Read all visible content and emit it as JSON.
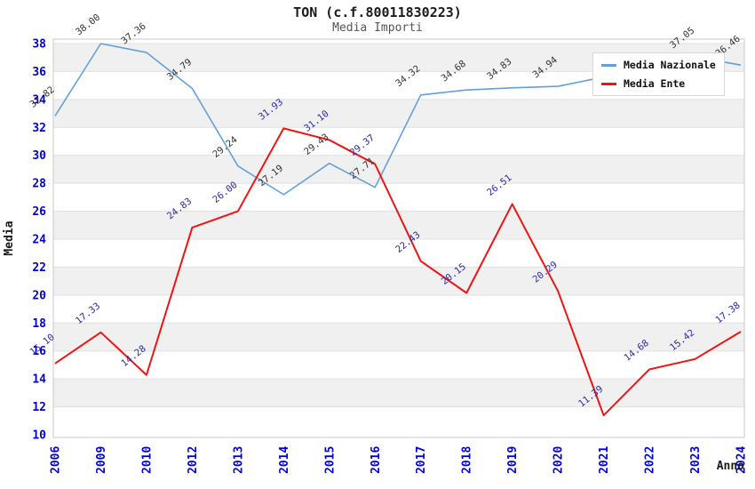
{
  "colors": {
    "nazionale": "#64a0d8",
    "ente": "#ee1414",
    "tick": "#0000dd",
    "band": "#f0f0f0",
    "grid": "#e0e0e0",
    "border": "#c8c8c8",
    "subtitle": "#555555"
  },
  "chart_data": {
    "type": "line",
    "title": "TON (c.f.80011830223)",
    "subtitle": "Media Importi",
    "xlabel": "Anno",
    "ylabel": "Media",
    "ylim": [
      10,
      38
    ],
    "y_ticks": [
      10,
      12,
      14,
      16,
      18,
      20,
      22,
      24,
      26,
      28,
      30,
      32,
      34,
      36,
      38
    ],
    "grid": "alternating-bands",
    "legend_position": "top-right",
    "categories": [
      "2006",
      "2009",
      "2010",
      "2012",
      "2013",
      "2014",
      "2015",
      "2016",
      "2017",
      "2018",
      "2019",
      "2020",
      "2021",
      "2022",
      "2023",
      "2024"
    ],
    "series": [
      {
        "name": "Media Nazionale",
        "color": "#64a0d8",
        "label_color": "#333333",
        "values": [
          32.82,
          38.0,
          37.36,
          34.79,
          29.24,
          27.19,
          29.43,
          27.71,
          34.32,
          34.68,
          34.83,
          34.94,
          35.6,
          36.4,
          37.05,
          36.46
        ],
        "labels": [
          "32.82",
          "38.00",
          "37.36",
          "34.79",
          "29.24",
          "27.19",
          "29.43",
          "27.71",
          "34.32",
          "34.68",
          "34.83",
          "34.94",
          "",
          "",
          "37.05",
          "36.46"
        ]
      },
      {
        "name": "Media Ente",
        "color": "#ee1414",
        "label_color": "#2a2aaa",
        "values": [
          15.1,
          17.33,
          14.28,
          24.83,
          26.0,
          31.93,
          31.1,
          29.37,
          22.43,
          20.15,
          26.51,
          20.29,
          11.39,
          14.68,
          15.42,
          17.38
        ],
        "labels": [
          "15.10",
          "17.33",
          "14.28",
          "24.83",
          "26.00",
          "31.93",
          "31.10",
          "29.37",
          "22.43",
          "20.15",
          "26.51",
          "20.29",
          "11.39",
          "14.68",
          "15.42",
          "17.38"
        ]
      }
    ]
  }
}
